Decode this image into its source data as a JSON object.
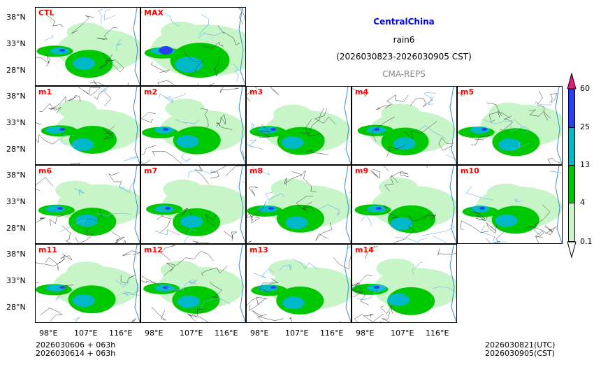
{
  "title": {
    "region": "CentralChina",
    "variable": "rain6",
    "period": "(2026030823-2026030905 CST)",
    "model": "CMA-REPS"
  },
  "panels": [
    "CTL",
    "MAX",
    "m1",
    "m2",
    "m3",
    "m4",
    "m5",
    "m6",
    "m7",
    "m8",
    "m9",
    "m10",
    "m11",
    "m12",
    "m13",
    "m14"
  ],
  "y_ticks": [
    "38°N",
    "33°N",
    "28°N"
  ],
  "x_ticks": [
    "98°E",
    "107°E",
    "116°E"
  ],
  "footer": {
    "init_utc": "2026030606  +  063h",
    "init_cst": "2026030614  +  063h",
    "valid_utc": "2026030821(UTC)",
    "valid_cst": "2026030905(CST)"
  },
  "colorbar": {
    "levels": [
      "0.1",
      "4",
      "13",
      "25",
      "60"
    ],
    "colors": [
      "#ffffff",
      "#c8f5c8",
      "#00c800",
      "#00b8c8",
      "#2840f0",
      "#e6187a"
    ]
  }
}
